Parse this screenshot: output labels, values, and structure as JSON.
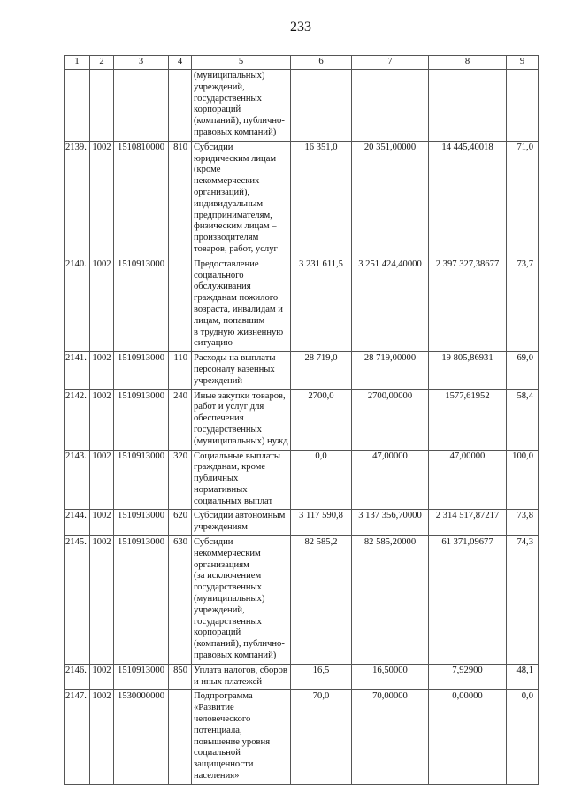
{
  "page_number": "233",
  "header": [
    "1",
    "2",
    "3",
    "4",
    "5",
    "6",
    "7",
    "8",
    "9"
  ],
  "rows": [
    {
      "c1": "",
      "c2": "",
      "c3": "",
      "c4": "",
      "c5": "(муниципальных)\nучреждений,\nгосударственных\nкорпораций\n(компаний), публично-\nправовых компаний)",
      "c6": "",
      "c7": "",
      "c8": "",
      "c9": ""
    },
    {
      "c1": "2139.",
      "c2": "1002",
      "c3": "1510810000",
      "c4": "810",
      "c5": "Субсидии\nюридическим лицам\n(кроме\nнекоммерческих\nорганизаций),\nиндивидуальным\nпредпринимателям,\nфизическим лицам –\nпроизводителям\nтоваров, работ, услуг",
      "c6": "16 351,0",
      "c7": "20 351,00000",
      "c8": "14 445,40018",
      "c9": "71,0"
    },
    {
      "c1": "2140.",
      "c2": "1002",
      "c3": "1510913000",
      "c4": "",
      "c5": "Предоставление\nсоциального\nобслуживания\nгражданам пожилого\nвозраста, инвалидам и\nлицам, попавшим\nв трудную жизненную\nситуацию",
      "c6": "3 231 611,5",
      "c7": "3 251 424,40000",
      "c8": "2 397 327,38677",
      "c9": "73,7"
    },
    {
      "c1": "2141.",
      "c2": "1002",
      "c3": "1510913000",
      "c4": "110",
      "c5": "Расходы на выплаты\nперсоналу казенных\nучреждений",
      "c6": "28 719,0",
      "c7": "28 719,00000",
      "c8": "19 805,86931",
      "c9": "69,0"
    },
    {
      "c1": "2142.",
      "c2": "1002",
      "c3": "1510913000",
      "c4": "240",
      "c5": "Иные закупки товаров,\nработ и услуг для\nобеспечения\nгосударственных\n(муниципальных) нужд",
      "c6": "2700,0",
      "c7": "2700,00000",
      "c8": "1577,61952",
      "c9": "58,4"
    },
    {
      "c1": "2143.",
      "c2": "1002",
      "c3": "1510913000",
      "c4": "320",
      "c5": "Социальные выплаты\nгражданам, кроме\nпубличных\nнормативных\nсоциальных выплат",
      "c6": "0,0",
      "c7": "47,00000",
      "c8": "47,00000",
      "c9": "100,0"
    },
    {
      "c1": "2144.",
      "c2": "1002",
      "c3": "1510913000",
      "c4": "620",
      "c5": "Субсидии автономным\nучреждениям",
      "c6": "3 117 590,8",
      "c7": "3 137 356,70000",
      "c8": "2 314 517,87217",
      "c9": "73,8"
    },
    {
      "c1": "2145.",
      "c2": "1002",
      "c3": "1510913000",
      "c4": "630",
      "c5": "Субсидии\nнекоммерческим\nорганизациям\n(за исключением\nгосударственных\n(муниципальных)\nучреждений,\nгосударственных\nкорпораций\n(компаний), публично-\nправовых компаний)",
      "c6": "82 585,2",
      "c7": "82 585,20000",
      "c8": "61 371,09677",
      "c9": "74,3"
    },
    {
      "c1": "2146.",
      "c2": "1002",
      "c3": "1510913000",
      "c4": "850",
      "c5": "Уплата налогов, сборов\nи иных платежей",
      "c6": "16,5",
      "c7": "16,50000",
      "c8": "7,92900",
      "c9": "48,1"
    },
    {
      "c1": "2147.",
      "c2": "1002",
      "c3": "1530000000",
      "c4": "",
      "c5": "Подпрограмма\n«Развитие\nчеловеческого\nпотенциала,\nповышение уровня\nсоциальной\nзащищенности\nнаселения»",
      "c6": "70,0",
      "c7": "70,00000",
      "c8": "0,00000",
      "c9": "0,0"
    }
  ]
}
